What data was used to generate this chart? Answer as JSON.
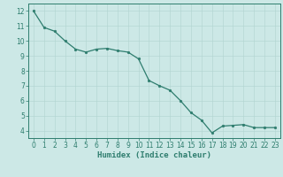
{
  "x": [
    0,
    1,
    2,
    3,
    4,
    5,
    6,
    7,
    8,
    9,
    10,
    11,
    12,
    13,
    14,
    15,
    16,
    17,
    18,
    19,
    20,
    21,
    22,
    23
  ],
  "y": [
    12.0,
    10.9,
    10.65,
    10.0,
    9.45,
    9.25,
    9.45,
    9.5,
    9.35,
    9.25,
    8.8,
    7.35,
    7.0,
    6.7,
    6.0,
    5.2,
    4.7,
    3.85,
    4.3,
    4.35,
    4.4,
    4.2,
    4.2,
    4.2
  ],
  "line_color": "#2e7d6e",
  "marker_color": "#2e7d6e",
  "bg_color": "#cce8e6",
  "grid_color": "#b0d4d0",
  "axis_color": "#2e7d6e",
  "xlabel": "Humidex (Indice chaleur)",
  "ylim": [
    3.5,
    12.5
  ],
  "xlim": [
    -0.5,
    23.5
  ],
  "yticks": [
    4,
    5,
    6,
    7,
    8,
    9,
    10,
    11,
    12
  ],
  "xticks": [
    0,
    1,
    2,
    3,
    4,
    5,
    6,
    7,
    8,
    9,
    10,
    11,
    12,
    13,
    14,
    15,
    16,
    17,
    18,
    19,
    20,
    21,
    22,
    23
  ],
  "marker_size": 2.0,
  "line_width": 0.9,
  "tick_fontsize": 5.5,
  "xlabel_fontsize": 6.5
}
